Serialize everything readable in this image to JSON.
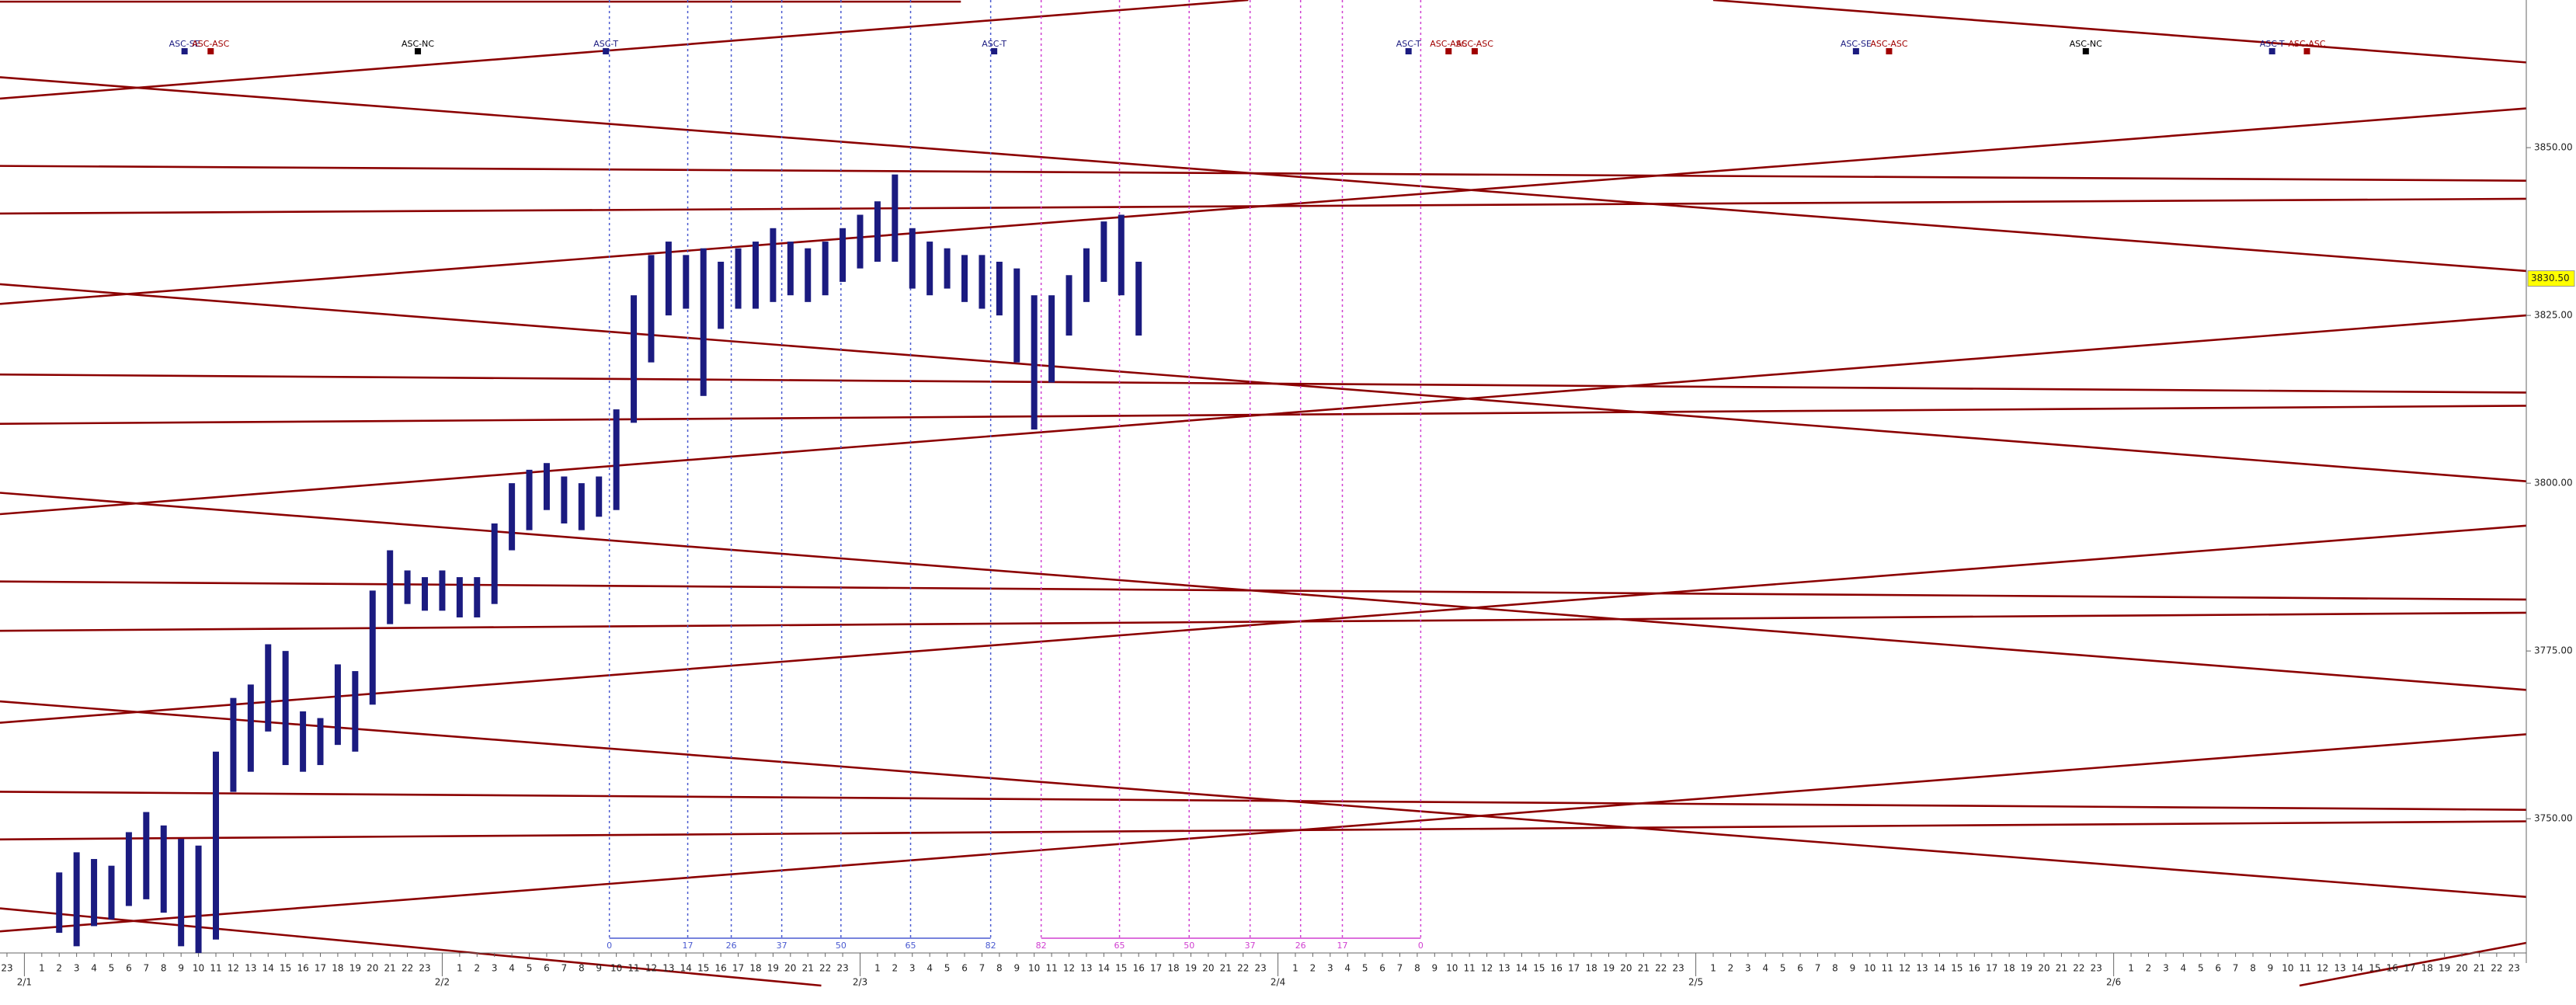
{
  "chart_data": {
    "type": "range",
    "color": "#1b1b80",
    "x": [
      2,
      3,
      4,
      5,
      6,
      7,
      8,
      9,
      10,
      11,
      12,
      13,
      14,
      15,
      16,
      17,
      18,
      19,
      20,
      21,
      22,
      23,
      24,
      25,
      26,
      27,
      28,
      29,
      30,
      31,
      32,
      33,
      34,
      35,
      36,
      37,
      38,
      39,
      40,
      41,
      42,
      43,
      44,
      45,
      46,
      47,
      48,
      49,
      50,
      51,
      52,
      53,
      54,
      55,
      56,
      57,
      58,
      59,
      60,
      61,
      62,
      63,
      64
    ],
    "high": [
      3742,
      3745,
      3744,
      3743,
      3748,
      3751,
      3749,
      3747,
      3746,
      3760,
      3768,
      3770,
      3776,
      3775,
      3766,
      3765,
      3773,
      3772,
      3784,
      3790,
      3787,
      3786,
      3787,
      3786,
      3786,
      3794,
      3800,
      3802,
      3803,
      3801,
      3800,
      3801,
      3811,
      3828,
      3834,
      3836,
      3834,
      3835,
      3833,
      3835,
      3836,
      3838,
      3836,
      3835,
      3836,
      3838,
      3840,
      3842,
      3846,
      3838,
      3836,
      3835,
      3834,
      3834,
      3833,
      3832,
      3828,
      3828,
      3831,
      3835,
      3839,
      3840,
      3833
    ],
    "low": [
      3733,
      3731,
      3734,
      3735,
      3737,
      3738,
      3736,
      3731,
      3730,
      3732,
      3754,
      3757,
      3763,
      3758,
      3757,
      3758,
      3761,
      3760,
      3767,
      3779,
      3782,
      3781,
      3781,
      3780,
      3780,
      3782,
      3790,
      3793,
      3796,
      3794,
      3793,
      3795,
      3796,
      3809,
      3818,
      3825,
      3826,
      3813,
      3823,
      3826,
      3826,
      3827,
      3828,
      3827,
      3828,
      3830,
      3832,
      3833,
      3833,
      3829,
      3828,
      3829,
      3827,
      3826,
      3825,
      3818,
      3808,
      3815,
      3822,
      3827,
      3830,
      3828,
      3822
    ],
    "xlim": [
      -1.4,
      143.7
    ],
    "ylim": [
      3730,
      3872
    ],
    "yticks": [
      {
        "value": 3750,
        "label": "3750.00"
      },
      {
        "value": 3775,
        "label": "3775.00"
      },
      {
        "value": 3800,
        "label": "3800.00"
      },
      {
        "value": 3825,
        "label": "3825.00"
      },
      {
        "value": 3850,
        "label": "3850.00"
      }
    ],
    "last_price": {
      "value": 3830.5,
      "label": "3830.50"
    },
    "days": [
      {
        "date": null,
        "hours": [
          23
        ]
      },
      {
        "date": "2/1",
        "hours": [
          1,
          2,
          3,
          4,
          5,
          6,
          7,
          8,
          9,
          10,
          11,
          12,
          13,
          14,
          15,
          16,
          17,
          18,
          19,
          20,
          21,
          22,
          23
        ]
      },
      {
        "date": "2/2",
        "hours": [
          1,
          2,
          3,
          4,
          5,
          6,
          7,
          8,
          9,
          10,
          11,
          12,
          13,
          14,
          15,
          16,
          17,
          18,
          19,
          20,
          21,
          22,
          23
        ]
      },
      {
        "date": "2/3",
        "hours": [
          1,
          2,
          3,
          4,
          5,
          6,
          7,
          8,
          9,
          10,
          11,
          12,
          13,
          14,
          15,
          16,
          17,
          18,
          19,
          20,
          21,
          22,
          23
        ]
      },
      {
        "date": "2/4",
        "hours": [
          1,
          2,
          3,
          4,
          5,
          6,
          7,
          8,
          9,
          10,
          11,
          12,
          13,
          14,
          15,
          16,
          17,
          18,
          19,
          20,
          21,
          22,
          23
        ]
      },
      {
        "date": "2/5",
        "hours": [
          1,
          2,
          3,
          4,
          5,
          6,
          7,
          8,
          9,
          10,
          11,
          12,
          13,
          14,
          15,
          16,
          17,
          18,
          19,
          20,
          21,
          22,
          23
        ]
      },
      {
        "date": "2/6",
        "hours": [
          1,
          2,
          3,
          4,
          5,
          6,
          7,
          8,
          9,
          10,
          11,
          12,
          13,
          14,
          15,
          16,
          17,
          18,
          19,
          20,
          21,
          22,
          23
        ]
      }
    ],
    "cycles": [
      {
        "color": "#4a5ad0",
        "markers": [
          {
            "x": 33.6,
            "count": 0
          },
          {
            "x": 38.1,
            "count": 17
          },
          {
            "x": 40.6,
            "count": 26
          },
          {
            "x": 43.5,
            "count": 37
          },
          {
            "x": 46.9,
            "count": 50
          },
          {
            "x": 50.9,
            "count": 65
          },
          {
            "x": 55.5,
            "count": 82
          }
        ]
      },
      {
        "color": "#d040d0",
        "markers": [
          {
            "x": 58.4,
            "count": 82
          },
          {
            "x": 62.9,
            "count": 65
          },
          {
            "x": 66.9,
            "count": 50
          },
          {
            "x": 70.4,
            "count": 37
          },
          {
            "x": 73.3,
            "count": 26
          },
          {
            "x": 75.7,
            "count": 17
          },
          {
            "x": 80.2,
            "count": 0
          }
        ]
      }
    ],
    "annotations": [
      {
        "x": 9.2,
        "text": "ASC-SE",
        "color": "#1b1b80"
      },
      {
        "x": 10.7,
        "text": "ASC-ASC",
        "color": "#a00000"
      },
      {
        "x": 22.6,
        "text": "ASC-NC",
        "color": "#000000"
      },
      {
        "x": 33.4,
        "text": "ASC-T",
        "color": "#1b1b80"
      },
      {
        "x": 55.7,
        "text": "ASC-T",
        "color": "#1b1b80"
      },
      {
        "x": 79.5,
        "text": "ASC-T",
        "color": "#1b1b80"
      },
      {
        "x": 81.8,
        "text": "ASC-ASC",
        "color": "#a00000"
      },
      {
        "x": 83.3,
        "text": "ASC-ASC",
        "color": "#a00000"
      },
      {
        "x": 105.2,
        "text": "ASC-SE",
        "color": "#1b1b80"
      },
      {
        "x": 107.1,
        "text": "ASC-ASC",
        "color": "#a00000"
      },
      {
        "x": 118.4,
        "text": "ASC-NC",
        "color": "#000000"
      },
      {
        "x": 129.1,
        "text": "ASC-T",
        "color": "#1b1b80"
      },
      {
        "x": 131.1,
        "text": "ASC-ASC",
        "color": "#a00000"
      }
    ]
  }
}
